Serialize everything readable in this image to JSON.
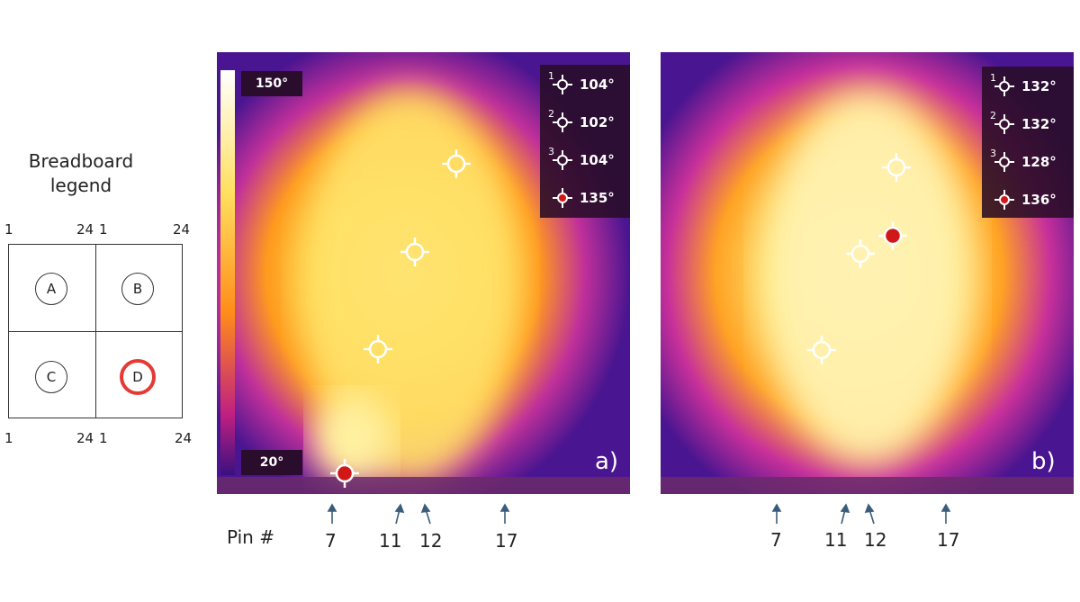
{
  "legend": {
    "title_line1": "Breadboard",
    "title_line2": "legend",
    "top_left_1": "1",
    "top_left_24": "24",
    "top_right_1": "1",
    "top_right_24": "24",
    "bottom_left_1": "1",
    "bottom_left_24": "24",
    "bottom_right_1": "1",
    "bottom_right_24": "24",
    "quadrants": [
      "A",
      "B",
      "C",
      "D"
    ],
    "highlighted": "D",
    "highlight_color": "#e53935"
  },
  "panel_a": {
    "label": "a)",
    "scale_max": "150°",
    "scale_min": "20°",
    "readouts": [
      {
        "index": "1",
        "value": "104°",
        "icon": "crosshair-icon"
      },
      {
        "index": "2",
        "value": "102°",
        "icon": "crosshair-icon"
      },
      {
        "index": "3",
        "value": "104°",
        "icon": "crosshair-icon"
      },
      {
        "index": "",
        "value": "135°",
        "icon": "hotspot-crosshair-icon"
      }
    ]
  },
  "panel_b": {
    "label": "b)",
    "readouts": [
      {
        "index": "1",
        "value": "132°",
        "icon": "crosshair-icon"
      },
      {
        "index": "2",
        "value": "132°",
        "icon": "crosshair-icon"
      },
      {
        "index": "3",
        "value": "128°",
        "icon": "crosshair-icon"
      },
      {
        "index": "",
        "value": "136°",
        "icon": "hotspot-crosshair-icon"
      }
    ]
  },
  "pins": {
    "label": "Pin #",
    "numbers": [
      "7",
      "11",
      "12",
      "17"
    ]
  },
  "colors": {
    "hot": "#fffbe0",
    "warm": "#ffd94a",
    "mid": "#ff9a1e",
    "cool": "#c0309a",
    "cold": "#4a1590",
    "arrow": "#3b5d7a"
  }
}
